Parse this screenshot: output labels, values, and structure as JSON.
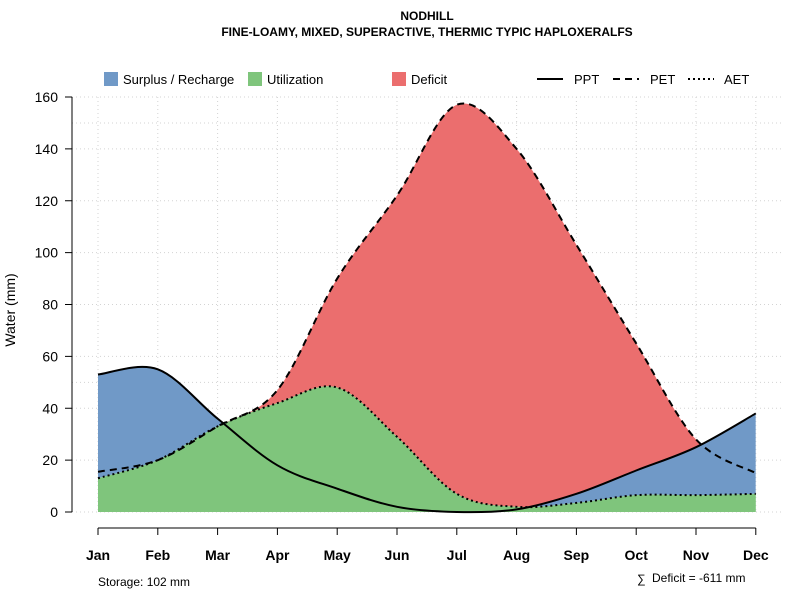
{
  "chart_data": {
    "type": "area",
    "title": "NODHILL",
    "subtitle": "FINE-LOAMY, MIXED, SUPERACTIVE, THERMIC TYPIC HAPLOXERALFS",
    "xlabel": "",
    "ylabel": "Water (mm)",
    "ylim": [
      0,
      160
    ],
    "yticks": [
      0,
      20,
      40,
      60,
      80,
      100,
      120,
      140,
      160
    ],
    "categories": [
      "Jan",
      "Feb",
      "Mar",
      "Apr",
      "May",
      "Jun",
      "Jul",
      "Aug",
      "Sep",
      "Oct",
      "Nov",
      "Dec"
    ],
    "series": [
      {
        "name": "PPT",
        "style": "solid",
        "values": [
          53,
          55,
          36,
          18,
          9,
          2,
          0,
          1,
          7,
          16,
          25,
          38
        ]
      },
      {
        "name": "PET",
        "style": "dashed",
        "values": [
          15.5,
          20,
          33,
          47,
          90,
          122,
          157,
          140,
          103,
          65,
          28,
          15
        ]
      },
      {
        "name": "AET",
        "style": "dotted",
        "values": [
          13,
          20,
          33,
          42,
          48,
          29,
          7,
          2,
          3.5,
          6.5,
          6.5,
          7
        ]
      }
    ],
    "areas": [
      {
        "name": "Surplus / Recharge",
        "color": "#7099c7"
      },
      {
        "name": "Utilization",
        "color": "#7fc57c"
      },
      {
        "name": "Deficit",
        "color": "#eb6e6e"
      }
    ],
    "legend": {
      "position": "top",
      "items": [
        "Surplus / Recharge",
        "Utilization",
        "Deficit",
        "PPT",
        "PET",
        "AET"
      ]
    },
    "grid": true,
    "annotations": {
      "storage": "Storage: 102 mm",
      "deficit_symbol": "∑",
      "deficit": "Deficit = -611 mm"
    }
  }
}
